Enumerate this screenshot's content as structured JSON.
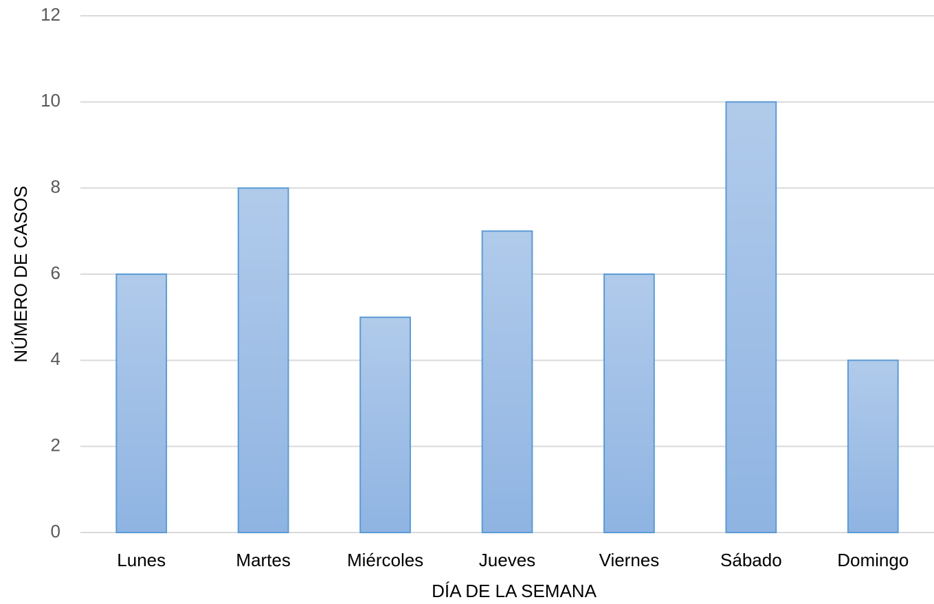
{
  "chart_data": {
    "type": "bar",
    "x_label": "DÍA DE LA SEMANA",
    "y_label": "NÚMERO DE CASOS",
    "categories": [
      "Lunes",
      "Martes",
      "Miércoles",
      "Jueves",
      "Viernes",
      "Sábado",
      "Domingo"
    ],
    "values": [
      6,
      8,
      5,
      7,
      6,
      10,
      4
    ],
    "color": "#8fb4e2",
    "edge_color": "#5b9bd5",
    "ylim": [
      0,
      12
    ],
    "yticks": [
      0,
      2,
      4,
      6,
      8,
      10,
      12
    ],
    "grid": true
  }
}
